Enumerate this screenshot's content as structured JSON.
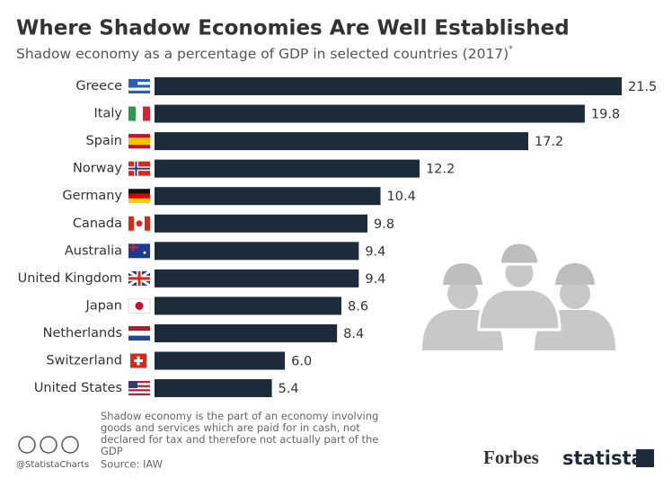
{
  "chart_data": {
    "type": "bar",
    "title": "Where Shadow Economies Are Well Established",
    "subtitle": "Shadow economy as a percentage of GDP in selected countries (2017)",
    "subtitle_marker": "*",
    "categories": [
      "Greece",
      "Italy",
      "Spain",
      "Norway",
      "Germany",
      "Canada",
      "Australia",
      "United Kingdom",
      "Japan",
      "Netherlands",
      "Switzerland",
      "United States"
    ],
    "values": [
      21.5,
      19.8,
      17.2,
      12.2,
      10.4,
      9.8,
      9.4,
      9.4,
      8.6,
      8.4,
      6.0,
      5.4
    ],
    "value_labels": [
      "21.5",
      "19.8",
      "17.2",
      "12.2",
      "10.4",
      "9.8",
      "9.4",
      "9.4",
      "8.6",
      "8.4",
      "6.0",
      "5.4"
    ],
    "color": "#1c2b39",
    "footnote": "Shadow economy is the part of an economy involving goods and services which are paid for in cash, not declared for tax and therefore not actually part of the GDP",
    "source": "Source: IAW",
    "credit": "@StatistaCharts",
    "logos": [
      "Forbes",
      "statista"
    ]
  }
}
